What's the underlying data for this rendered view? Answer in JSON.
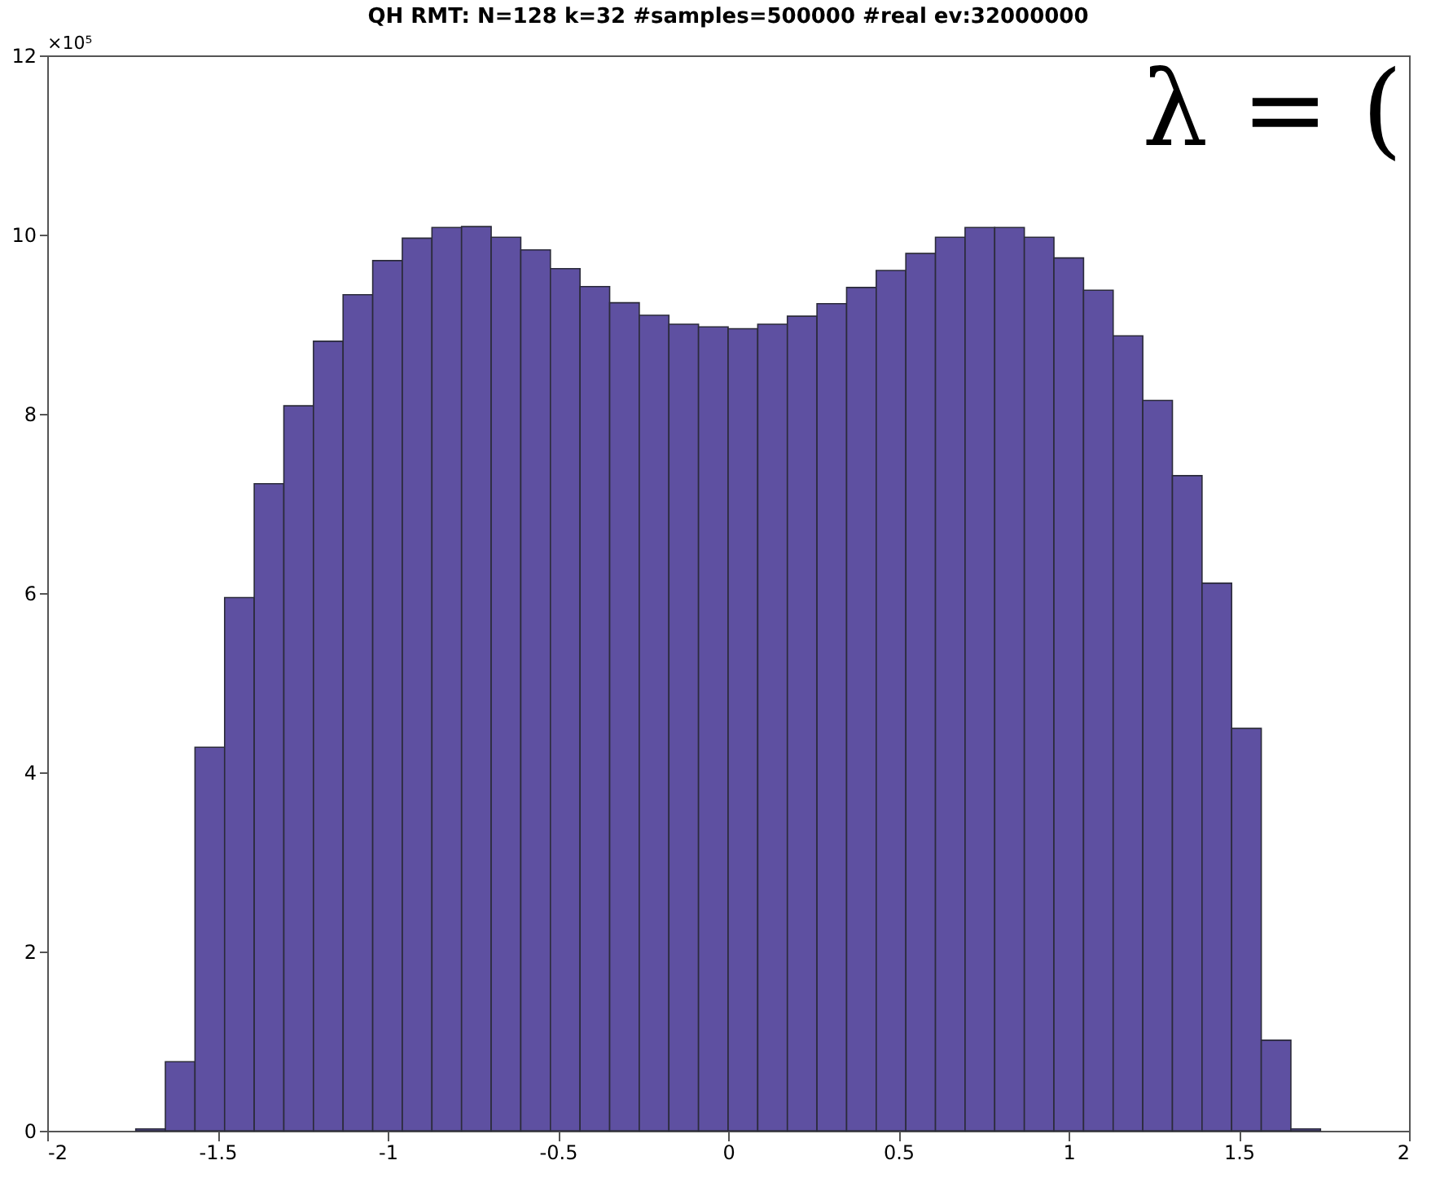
{
  "chart_data": {
    "type": "histogram",
    "title": "QH RMT: N=128 k=32 #samples=500000 #real ev:32000000",
    "bins": [
      -1.74,
      -1.653,
      -1.566,
      -1.479,
      -1.392,
      -1.305,
      -1.218,
      -1.131,
      -1.044,
      -0.957,
      -0.87,
      -0.783,
      -0.696,
      -0.609,
      -0.522,
      -0.435,
      -0.348,
      -0.261,
      -0.174,
      -0.087,
      0,
      0.087,
      0.174,
      0.261,
      0.348,
      0.435,
      0.522,
      0.609,
      0.696,
      0.783,
      0.87,
      0.957,
      1.044,
      1.131,
      1.218,
      1.305,
      1.392,
      1.479,
      1.566,
      1.653,
      1.74
    ],
    "values": [
      0.02,
      0.77,
      4.28,
      5.95,
      7.22,
      8.09,
      8.81,
      9.33,
      9.71,
      9.96,
      10.08,
      10.09,
      9.97,
      9.83,
      9.62,
      9.42,
      9.24,
      9.1,
      9.0,
      8.97,
      8.95,
      9.0,
      9.09,
      9.23,
      9.41,
      9.6,
      9.79,
      9.97,
      10.08,
      10.08,
      9.97,
      9.74,
      9.38,
      8.87,
      8.15,
      7.31,
      6.11,
      4.49,
      1.01,
      0.02
    ],
    "color": "#5e50a1",
    "xlim": [
      -2,
      2
    ],
    "xticks": [
      -2,
      -1.5,
      -1,
      -0.5,
      0,
      0.5,
      1,
      1.5,
      2
    ],
    "ylim": [
      0,
      12
    ],
    "yticks": [
      0,
      2,
      4,
      6,
      8,
      10,
      12
    ],
    "grid": false,
    "annotations": [
      "×10⁵",
      "λ = ("
    ]
  }
}
